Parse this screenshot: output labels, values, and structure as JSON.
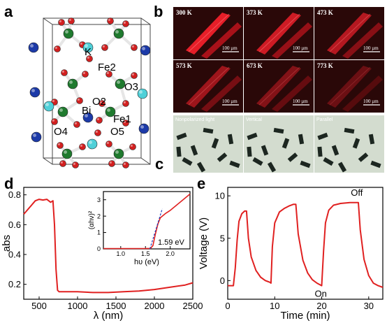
{
  "panels": {
    "a": "a",
    "b": "b",
    "c": "c",
    "d": "d",
    "e": "e"
  },
  "structure": {
    "labels": [
      "K",
      "Fe2",
      "O3",
      "O2",
      "Bi",
      "Fe1",
      "O4",
      "O5"
    ],
    "colors": {
      "Fe": "#1f7a2e",
      "O": "#d22020",
      "K": "#4fd0d8",
      "Bi": "#1c3aa8",
      "bond": "#e6e6e6"
    }
  },
  "micrographs": {
    "temperatures": [
      "300 K",
      "373 K",
      "473 K",
      "573 K",
      "673 K",
      "773 K"
    ],
    "scale_bar": "100 µm",
    "polarization": [
      "Nonpolarized light",
      "Vertical",
      "Parallel"
    ]
  },
  "chart_data": [
    {
      "type": "line",
      "panel": "d",
      "xlabel": "λ (nm)",
      "ylabel": "abs",
      "xlim": [
        300,
        2500
      ],
      "ylim": [
        0.1,
        0.85
      ],
      "xticks": [
        500,
        1000,
        1500,
        2000,
        2500
      ],
      "yticks": [
        0.2,
        0.4,
        0.6,
        0.8
      ],
      "series": [
        {
          "x": [
            300,
            350,
            400,
            450,
            500,
            550,
            600,
            650,
            680,
            700,
            720,
            740,
            760,
            800,
            900,
            1000,
            1200,
            1400,
            1600,
            1800,
            2000,
            2200,
            2400,
            2500
          ],
          "values": [
            0.67,
            0.7,
            0.73,
            0.76,
            0.77,
            0.765,
            0.77,
            0.75,
            0.76,
            0.6,
            0.3,
            0.16,
            0.15,
            0.15,
            0.15,
            0.15,
            0.145,
            0.145,
            0.15,
            0.155,
            0.165,
            0.18,
            0.195,
            0.21
          ]
        }
      ],
      "inset": {
        "xlabel": "hυ (eV)",
        "ylabel": "(αhν)²",
        "xlim": [
          0.65,
          2.4
        ],
        "ylim": [
          0,
          3.5
        ],
        "xticks": [
          1.0,
          1.5,
          2.0
        ],
        "yticks": [
          0,
          1,
          2,
          3
        ],
        "annotation": "1.59 eV",
        "series": [
          {
            "x": [
              0.65,
              1.0,
              1.3,
              1.5,
              1.6,
              1.65,
              1.7,
              1.75,
              1.8,
              1.9,
              2.0,
              2.1,
              2.2,
              2.3,
              2.4
            ],
            "values": [
              0.02,
              0.02,
              0.02,
              0.02,
              0.03,
              0.2,
              0.9,
              1.5,
              1.9,
              2.15,
              2.35,
              2.6,
              2.85,
              3.1,
              3.35
            ]
          }
        ],
        "fit": {
          "x": [
            1.59,
            1.84
          ],
          "values": [
            0.0,
            2.45
          ]
        }
      }
    },
    {
      "type": "line",
      "panel": "e",
      "xlabel": "Time (min)",
      "ylabel": "Voltage (V)",
      "xlim": [
        0,
        33
      ],
      "ylim": [
        -2.2,
        11
      ],
      "xticks": [
        0,
        10,
        20,
        30
      ],
      "yticks": [
        0,
        5,
        10
      ],
      "annotations": [
        "Off",
        "On"
      ],
      "series": [
        {
          "x": [
            0,
            1.2,
            1.6,
            2.0,
            2.4,
            3.0,
            3.6,
            4.0,
            4.4,
            5.0,
            6.0,
            7.0,
            8.0,
            9.0,
            9.2,
            9.5,
            10.0,
            11.0,
            12.0,
            13.0,
            14.0,
            14.5,
            15.0,
            16.0,
            17.0,
            18.0,
            19.0,
            20.0,
            20.4,
            20.8,
            21.5,
            22.5,
            24.0,
            26.0,
            27.8,
            28.2,
            29.0,
            30.0,
            31.0,
            32.0,
            33.0
          ],
          "values": [
            -0.6,
            -0.6,
            1.5,
            4.8,
            7.0,
            7.9,
            8.2,
            8.2,
            5.0,
            2.8,
            1.2,
            0.4,
            0.0,
            -0.2,
            -0.3,
            4.0,
            6.8,
            8.1,
            8.5,
            8.8,
            9.0,
            9.0,
            5.5,
            2.4,
            0.9,
            0.1,
            -0.3,
            -0.6,
            3.5,
            6.8,
            8.3,
            8.9,
            9.1,
            9.2,
            9.2,
            6.0,
            2.5,
            0.6,
            -0.3,
            -0.6,
            -0.8
          ]
        }
      ]
    }
  ]
}
